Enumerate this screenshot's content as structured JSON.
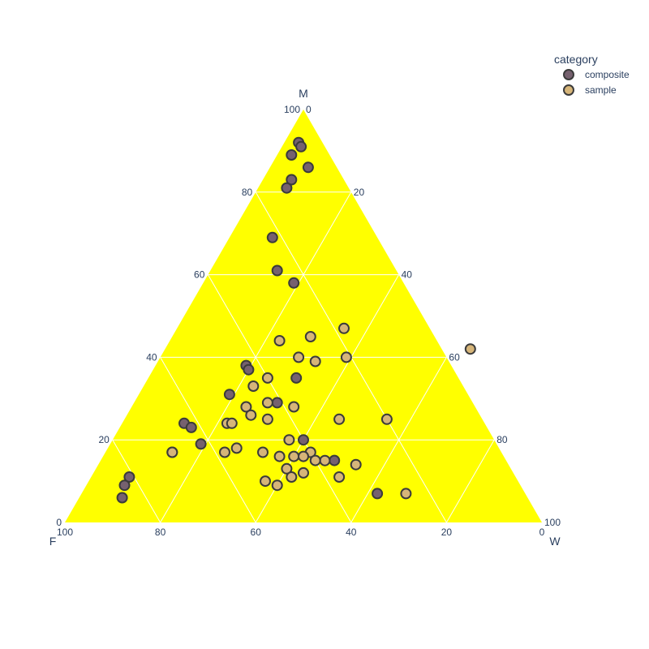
{
  "chart_data": {
    "type": "ternary-scatter",
    "axes": {
      "a": {
        "label": "M",
        "ticks": [
          0,
          20,
          40,
          60,
          80,
          100
        ]
      },
      "b": {
        "label": "F",
        "ticks": [
          0,
          20,
          40,
          60,
          80,
          100
        ]
      },
      "c": {
        "label": "W",
        "ticks": [
          0,
          20,
          40,
          60,
          80,
          100
        ]
      }
    },
    "background_color": "#ffff00",
    "grid": true,
    "legend": {
      "title": "category",
      "placement": "top-right",
      "items": [
        {
          "name": "composite",
          "color": "#76616f"
        },
        {
          "name": "sample",
          "color": "#d6b579"
        }
      ]
    },
    "series": [
      {
        "name": "composite",
        "color": "#76616f",
        "points": [
          {
            "M": 92,
            "W": 3
          },
          {
            "M": 91,
            "W": 4
          },
          {
            "M": 89,
            "W": 3
          },
          {
            "M": 86,
            "W": 8
          },
          {
            "M": 83,
            "W": 6
          },
          {
            "M": 81,
            "W": 6
          },
          {
            "M": 69,
            "W": 9
          },
          {
            "M": 61,
            "W": 14
          },
          {
            "M": 58,
            "W": 19
          },
          {
            "M": 38,
            "W": 19
          },
          {
            "M": 37,
            "W": 20
          },
          {
            "M": 35,
            "W": 31
          },
          {
            "M": 31,
            "W": 19
          },
          {
            "M": 29,
            "W": 30
          },
          {
            "M": 24,
            "W": 13
          },
          {
            "M": 23,
            "W": 15
          },
          {
            "M": 19,
            "W": 19
          },
          {
            "M": 17,
            "W": 14
          },
          {
            "M": 20,
            "W": 40
          },
          {
            "M": 15,
            "W": 49
          },
          {
            "M": 7,
            "W": 62
          },
          {
            "M": 11,
            "W": 8
          },
          {
            "M": 9,
            "W": 8
          },
          {
            "M": 6,
            "W": 9
          }
        ]
      },
      {
        "name": "sample",
        "color": "#d6b579",
        "points": [
          {
            "M": 44,
            "W": 23
          },
          {
            "M": 45,
            "W": 29
          },
          {
            "M": 47,
            "W": 35
          },
          {
            "M": 42,
            "W": 64
          },
          {
            "M": 40,
            "W": 29
          },
          {
            "M": 40,
            "W": 39
          },
          {
            "M": 39,
            "W": 33
          },
          {
            "M": 35,
            "W": 25
          },
          {
            "M": 33,
            "W": 23
          },
          {
            "M": 29,
            "W": 28
          },
          {
            "M": 28,
            "W": 34
          },
          {
            "M": 28,
            "W": 24
          },
          {
            "M": 26,
            "W": 26
          },
          {
            "M": 25,
            "W": 30
          },
          {
            "M": 25,
            "W": 45
          },
          {
            "M": 25,
            "W": 55
          },
          {
            "M": 24,
            "W": 22
          },
          {
            "M": 24,
            "W": 23
          },
          {
            "M": 20,
            "W": 37
          },
          {
            "M": 18,
            "W": 27
          },
          {
            "M": 17,
            "W": 25
          },
          {
            "M": 17,
            "W": 33
          },
          {
            "M": 17,
            "W": 14
          },
          {
            "M": 17,
            "W": 43
          },
          {
            "M": 16,
            "W": 40
          },
          {
            "M": 16,
            "W": 37
          },
          {
            "M": 16,
            "W": 42
          },
          {
            "M": 15,
            "W": 47
          },
          {
            "M": 15,
            "W": 45
          },
          {
            "M": 14,
            "W": 54
          },
          {
            "M": 13,
            "W": 40
          },
          {
            "M": 12,
            "W": 44
          },
          {
            "M": 11,
            "W": 42
          },
          {
            "M": 11,
            "W": 52
          },
          {
            "M": 10,
            "W": 37
          },
          {
            "M": 9,
            "W": 40
          },
          {
            "M": 7,
            "W": 68
          }
        ]
      }
    ]
  }
}
